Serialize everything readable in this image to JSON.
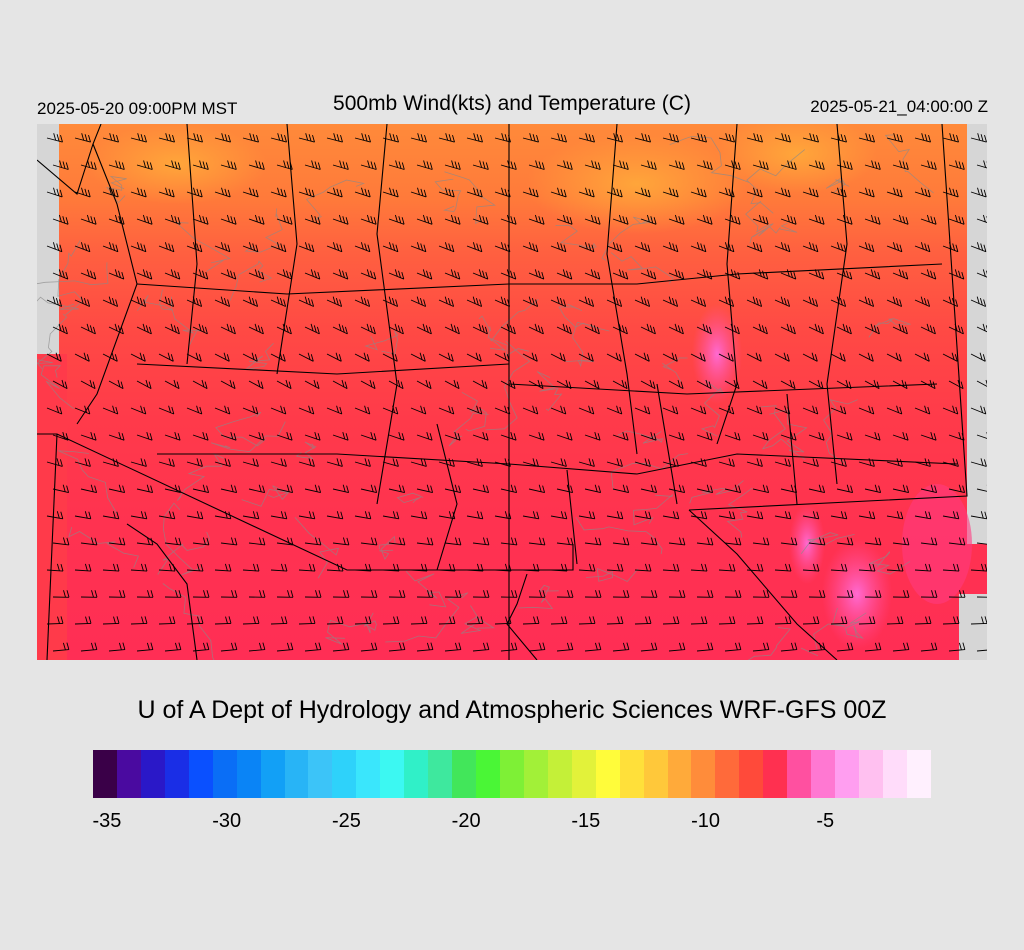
{
  "header": {
    "valid_local": "2025-05-20 09:00PM MST",
    "title": "500mb Wind(kts) and Temperature (C)",
    "valid_utc": "2025-05-21_04:00:00 Z"
  },
  "credit": "U of A Dept of Hydrology and Atmospheric Sciences WRF-GFS 00Z",
  "map": {
    "background_color": "#d6d6d6",
    "border_color": "#000000",
    "contour_color": "#8a8a8a",
    "barb_color": "#000000"
  },
  "colorbar": {
    "colors": [
      "#3a0048",
      "#4a0aa0",
      "#2a18c8",
      "#1a2ee6",
      "#0a50ff",
      "#0a6ef6",
      "#0a84f6",
      "#12a0f6",
      "#28b4f6",
      "#3cc4f8",
      "#2ed2fa",
      "#3ae6fc",
      "#3cf8f2",
      "#30f0c8",
      "#3ee89e",
      "#42e65a",
      "#4af636",
      "#7ef036",
      "#a2f038",
      "#c4f038",
      "#e2f23a",
      "#fffc3a",
      "#ffe03a",
      "#ffc83a",
      "#ffaa3a",
      "#ff8c3a",
      "#ff6a3a",
      "#ff4a3a",
      "#ff3050",
      "#ff50a0",
      "#ff78d2",
      "#ff9ef0",
      "#ffc0f0",
      "#ffdcfa",
      "#fff0fe"
    ],
    "tick_labels": [
      "-35",
      "-30",
      "-25",
      "-20",
      "-15",
      "-10",
      "-5"
    ],
    "units": "C"
  }
}
